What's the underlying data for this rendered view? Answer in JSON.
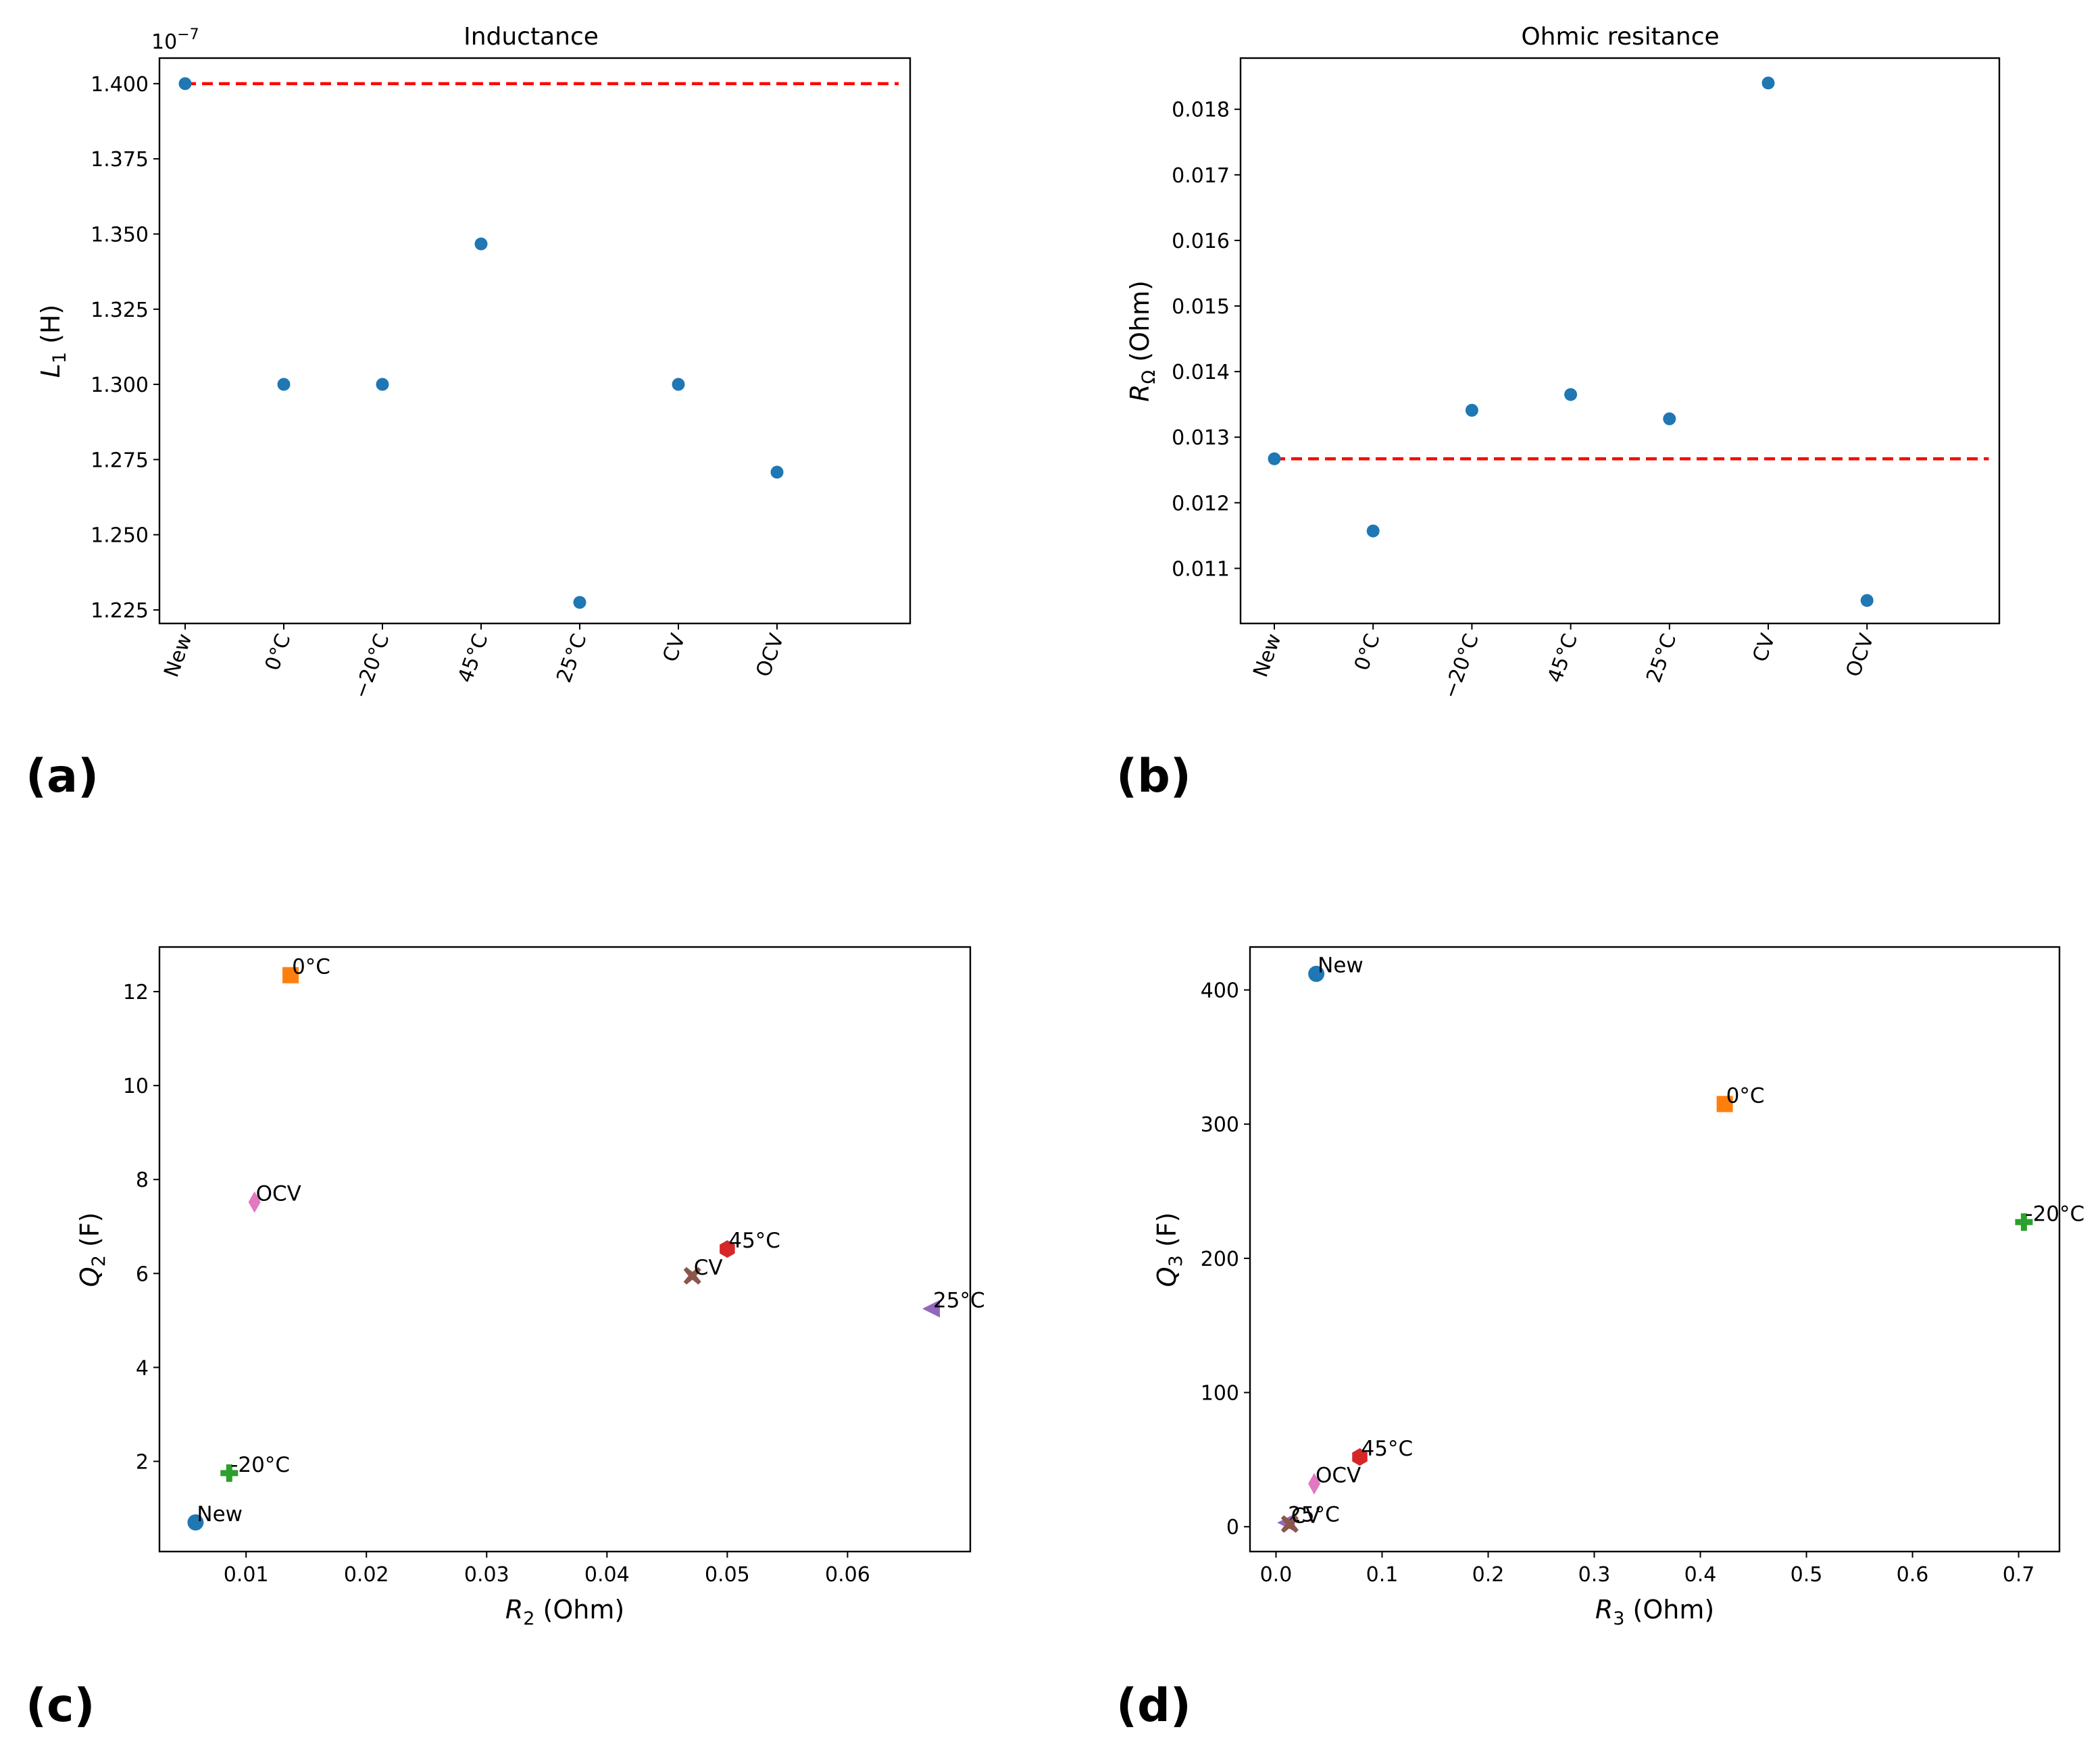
{
  "chart_data": [
    {
      "id": "a",
      "panel_label": "(a)",
      "type": "scatter",
      "title": "Inductance",
      "ylabel_main": "L",
      "ylabel_sub": "1",
      "ylabel_rest": " (H)",
      "offset_text": "10",
      "offset_exp": "−7",
      "categories": [
        "New",
        "0°C",
        "−20°C",
        "45°C",
        "25°C",
        "CV",
        "OCV"
      ],
      "values": [
        1.4,
        1.3,
        1.3,
        1.3467,
        1.2275,
        1.3,
        1.2708
      ],
      "ylim": [
        1.2205,
        1.4085
      ],
      "yticks": [
        1.225,
        1.25,
        1.275,
        1.3,
        1.325,
        1.35,
        1.375,
        1.4
      ],
      "ytick_labels": [
        "1.225",
        "1.250",
        "1.275",
        "1.300",
        "1.325",
        "1.350",
        "1.375",
        "1.400"
      ],
      "reference_line": 1.4,
      "point_color": "#1f77b4",
      "reference_color": "#ff0000"
    },
    {
      "id": "b",
      "panel_label": "(b)",
      "type": "scatter",
      "title": "Ohmic resitance",
      "ylabel_main": "R",
      "ylabel_sub": "Ω",
      "ylabel_rest": " (Ohm)",
      "categories": [
        "New",
        "0°C",
        "−20°C",
        "45°C",
        "25°C",
        "CV",
        "OCV"
      ],
      "values": [
        0.01267,
        0.01157,
        0.01341,
        0.01365,
        0.01328,
        0.0184,
        0.01051
      ],
      "ylim": [
        0.01016,
        0.01878
      ],
      "yticks": [
        0.011,
        0.012,
        0.013,
        0.014,
        0.015,
        0.016,
        0.017,
        0.018
      ],
      "ytick_labels": [
        "0.011",
        "0.012",
        "0.013",
        "0.014",
        "0.015",
        "0.016",
        "0.017",
        "0.018"
      ],
      "reference_line": 0.01267,
      "point_color": "#1f77b4",
      "reference_color": "#ff0000"
    },
    {
      "id": "c",
      "panel_label": "(c)",
      "type": "scatter",
      "xlabel_main": "R",
      "xlabel_sub": "2",
      "xlabel_rest": " (Ohm)",
      "ylabel_main": "Q",
      "ylabel_sub": "2",
      "ylabel_rest": " (F)",
      "xlim": [
        0.0028,
        0.0702
      ],
      "ylim": [
        0.08,
        12.95
      ],
      "xticks": [
        0.01,
        0.02,
        0.03,
        0.04,
        0.05,
        0.06
      ],
      "xtick_labels": [
        "0.01",
        "0.02",
        "0.03",
        "0.04",
        "0.05",
        "0.06"
      ],
      "yticks": [
        2,
        4,
        6,
        8,
        10,
        12
      ],
      "ytick_labels": [
        "2",
        "4",
        "6",
        "8",
        "10",
        "12"
      ],
      "points": [
        {
          "label": "New",
          "x": 0.0058,
          "y": 0.7,
          "marker": "circle",
          "color": "#1f77b4"
        },
        {
          "label": "0°C",
          "x": 0.0137,
          "y": 12.35,
          "marker": "square",
          "color": "#ff7f0e"
        },
        {
          "label": "-20°C",
          "x": 0.0086,
          "y": 1.75,
          "marker": "plus",
          "color": "#2ca02c"
        },
        {
          "label": "45°C",
          "x": 0.05,
          "y": 6.52,
          "marker": "hexagon",
          "color": "#d62728"
        },
        {
          "label": "25°C",
          "x": 0.067,
          "y": 5.25,
          "marker": "triangle-left",
          "color": "#9467bd"
        },
        {
          "label": "CV",
          "x": 0.0471,
          "y": 5.95,
          "marker": "x",
          "color": "#8c564b"
        },
        {
          "label": "OCV",
          "x": 0.0107,
          "y": 7.52,
          "marker": "diamond",
          "color": "#e377c2"
        }
      ]
    },
    {
      "id": "d",
      "panel_label": "(d)",
      "type": "scatter",
      "xlabel_main": "R",
      "xlabel_sub": "3",
      "xlabel_rest": " (Ohm)",
      "ylabel_main": "Q",
      "ylabel_sub": "3",
      "ylabel_rest": " (F)",
      "xlim": [
        -0.0245,
        0.7385
      ],
      "ylim": [
        -18.5,
        432.0
      ],
      "xticks": [
        0.0,
        0.1,
        0.2,
        0.3,
        0.4,
        0.5,
        0.6,
        0.7
      ],
      "xtick_labels": [
        "0.0",
        "0.1",
        "0.2",
        "0.3",
        "0.4",
        "0.5",
        "0.6",
        "0.7"
      ],
      "yticks": [
        0,
        100,
        200,
        300,
        400
      ],
      "ytick_labels": [
        "0",
        "100",
        "200",
        "300",
        "400"
      ],
      "points": [
        {
          "label": "New",
          "x": 0.038,
          "y": 412,
          "marker": "circle",
          "color": "#1f77b4"
        },
        {
          "label": "0°C",
          "x": 0.423,
          "y": 315,
          "marker": "square",
          "color": "#ff7f0e"
        },
        {
          "label": "-20°C",
          "x": 0.705,
          "y": 227,
          "marker": "plus",
          "color": "#2ca02c"
        },
        {
          "label": "45°C",
          "x": 0.079,
          "y": 52,
          "marker": "hexagon",
          "color": "#d62728"
        },
        {
          "label": "25°C",
          "x": 0.01,
          "y": 3,
          "marker": "triangle-left",
          "color": "#9467bd"
        },
        {
          "label": "CV",
          "x": 0.013,
          "y": 2,
          "marker": "x",
          "color": "#8c564b"
        },
        {
          "label": "OCV",
          "x": 0.036,
          "y": 32,
          "marker": "diamond",
          "color": "#e377c2"
        }
      ]
    }
  ]
}
